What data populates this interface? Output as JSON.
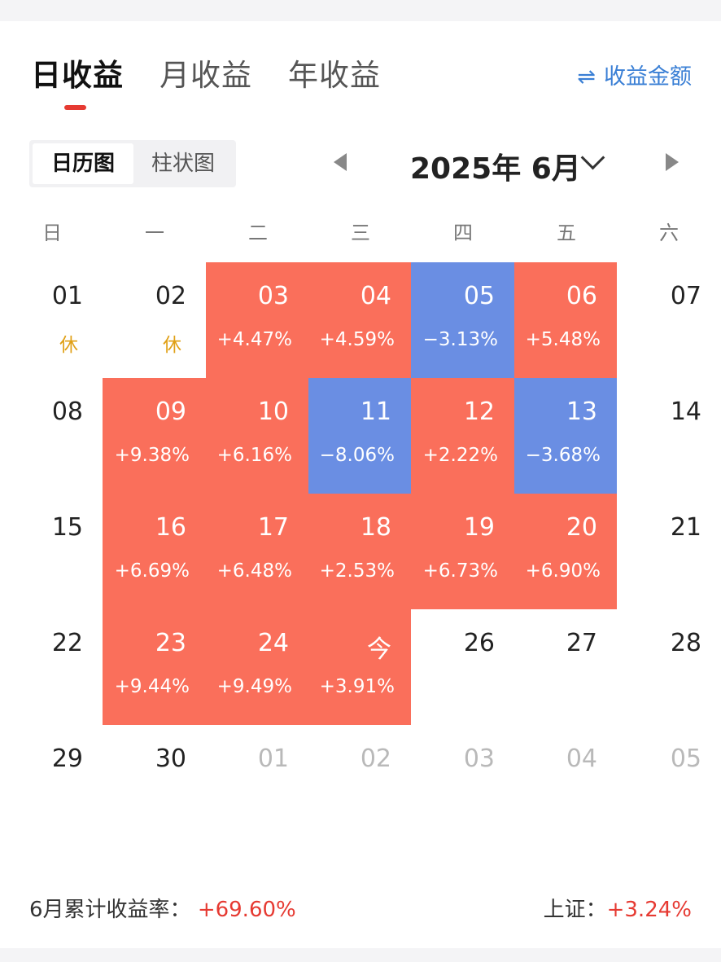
{
  "tabs": [
    {
      "label": "日收益",
      "active": true
    },
    {
      "label": "月收益",
      "active": false
    },
    {
      "label": "年收益",
      "active": false
    }
  ],
  "amount_toggle": {
    "icon": "⇌",
    "label": "收益金额"
  },
  "view_switch": [
    {
      "label": "日历图",
      "active": true
    },
    {
      "label": "柱状图",
      "active": false
    }
  ],
  "month_nav": {
    "title": "2025年 6月"
  },
  "weekdays": [
    "日",
    "一",
    "二",
    "三",
    "四",
    "五",
    "六"
  ],
  "calendar": [
    [
      {
        "day": "01",
        "note": "休",
        "status": "rest"
      },
      {
        "day": "02",
        "note": "休",
        "status": "rest"
      },
      {
        "day": "03",
        "value": "+4.47%",
        "status": "gain"
      },
      {
        "day": "04",
        "value": "+4.59%",
        "status": "gain"
      },
      {
        "day": "05",
        "value": "−3.13%",
        "status": "loss"
      },
      {
        "day": "06",
        "value": "+5.48%",
        "status": "gain"
      },
      {
        "day": "07",
        "status": "plain"
      }
    ],
    [
      {
        "day": "08",
        "status": "plain"
      },
      {
        "day": "09",
        "value": "+9.38%",
        "status": "gain"
      },
      {
        "day": "10",
        "value": "+6.16%",
        "status": "gain"
      },
      {
        "day": "11",
        "value": "−8.06%",
        "status": "loss"
      },
      {
        "day": "12",
        "value": "+2.22%",
        "status": "gain"
      },
      {
        "day": "13",
        "value": "−3.68%",
        "status": "loss"
      },
      {
        "day": "14",
        "status": "plain"
      }
    ],
    [
      {
        "day": "15",
        "status": "plain"
      },
      {
        "day": "16",
        "value": "+6.69%",
        "status": "gain"
      },
      {
        "day": "17",
        "value": "+6.48%",
        "status": "gain"
      },
      {
        "day": "18",
        "value": "+2.53%",
        "status": "gain"
      },
      {
        "day": "19",
        "value": "+6.73%",
        "status": "gain"
      },
      {
        "day": "20",
        "value": "+6.90%",
        "status": "gain"
      },
      {
        "day": "21",
        "status": "plain"
      }
    ],
    [
      {
        "day": "22",
        "status": "plain"
      },
      {
        "day": "23",
        "value": "+9.44%",
        "status": "gain"
      },
      {
        "day": "24",
        "value": "+9.49%",
        "status": "gain"
      },
      {
        "day": "今",
        "value": "+3.91%",
        "status": "gain"
      },
      {
        "day": "26",
        "status": "plain"
      },
      {
        "day": "27",
        "status": "plain"
      },
      {
        "day": "28",
        "status": "plain"
      }
    ],
    [
      {
        "day": "29",
        "status": "plain"
      },
      {
        "day": "30",
        "status": "plain"
      },
      {
        "day": "01",
        "status": "other"
      },
      {
        "day": "02",
        "status": "other"
      },
      {
        "day": "03",
        "status": "other"
      },
      {
        "day": "04",
        "status": "other"
      },
      {
        "day": "05",
        "status": "other"
      }
    ]
  ],
  "summary": {
    "month_label": "6月累计收益率：",
    "month_value": "+69.60%",
    "index_label": "上证：",
    "index_value": "+3.24%"
  },
  "colors": {
    "gain": "#fa6f5b",
    "loss": "#6a8ee3",
    "rest": "#e0a016",
    "accent": "#e63a32",
    "link": "#3a7fd5"
  }
}
